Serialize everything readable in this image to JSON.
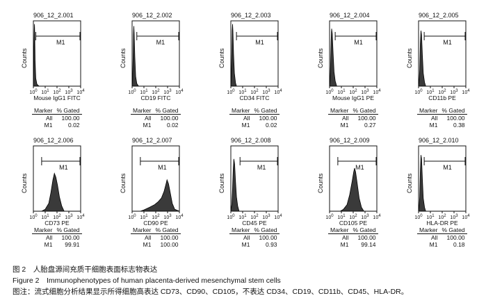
{
  "figure": {
    "caption_cn": "图 2　人胎盘源间充质干细胞表面标志物表达",
    "caption_en": "Figure 2　Immunophenotypes of human placenta-derived mesenchymal stem cells",
    "note": "图注：流式细胞分析结果显示所得细胞高表达 CD73、CD90、CD105，不表达 CD34、CD19、CD11b、CD45、HLA-DR。"
  },
  "chart_data": [
    {
      "type": "area",
      "title": "906_12_2.001",
      "xlabel": "Mouse IgG1 FITC",
      "ylabel": "Counts",
      "x_scale": "log",
      "xlim": [
        1,
        10000
      ],
      "x_ticks": [
        "10^0",
        "10^1",
        "10^2",
        "10^3",
        "10^4"
      ],
      "gate": {
        "name": "M1",
        "range": [
          1.6,
          10000
        ]
      },
      "peak_x": 1.25,
      "series": [
        {
          "x": [
            1,
            1.05,
            1.1,
            1.15,
            1.2,
            1.25,
            1.3,
            1.4,
            1.6,
            2,
            3,
            10000
          ],
          "y": [
            0,
            20,
            45,
            70,
            88,
            95,
            80,
            40,
            12,
            3,
            0,
            0
          ]
        }
      ],
      "stats": {
        "headers": [
          "Marker",
          "% Gated"
        ],
        "rows": [
          [
            "All",
            "100.00"
          ],
          [
            "M1",
            "0.02"
          ]
        ]
      }
    },
    {
      "type": "area",
      "title": "906_12_2.002",
      "xlabel": "CD19 FITC",
      "ylabel": "Counts",
      "x_scale": "log",
      "xlim": [
        1,
        10000
      ],
      "x_ticks": [
        "10^0",
        "10^1",
        "10^2",
        "10^3",
        "10^4"
      ],
      "gate": {
        "name": "M1",
        "range": [
          2.5,
          10000
        ]
      },
      "peak_x": 1.4,
      "series": [
        {
          "x": [
            1,
            1.1,
            1.2,
            1.3,
            1.4,
            1.5,
            1.7,
            2,
            2.5,
            3.5,
            10000
          ],
          "y": [
            0,
            10,
            40,
            78,
            92,
            80,
            45,
            15,
            4,
            0,
            0
          ]
        }
      ],
      "stats": {
        "headers": [
          "Marker",
          "% Gated"
        ],
        "rows": [
          [
            "All",
            "100.00"
          ],
          [
            "M1",
            "0.02"
          ]
        ]
      }
    },
    {
      "type": "area",
      "title": "906_12_2.003",
      "xlabel": "CD34 FITC",
      "ylabel": "Counts",
      "x_scale": "log",
      "xlim": [
        1,
        10000
      ],
      "x_ticks": [
        "10^0",
        "10^1",
        "10^2",
        "10^3",
        "10^4"
      ],
      "gate": {
        "name": "M1",
        "range": [
          3,
          10000
        ]
      },
      "peak_x": 1.35,
      "series": [
        {
          "x": [
            1,
            1.1,
            1.2,
            1.3,
            1.4,
            1.5,
            1.7,
            2,
            2.5,
            3,
            10000
          ],
          "y": [
            0,
            15,
            50,
            85,
            95,
            85,
            50,
            20,
            5,
            0,
            0
          ]
        }
      ],
      "stats": {
        "headers": [
          "Marker",
          "% Gated"
        ],
        "rows": [
          [
            "All",
            "100.00"
          ],
          [
            "M1",
            "0.02"
          ]
        ]
      }
    },
    {
      "type": "area",
      "title": "906_12_2.004",
      "xlabel": "Mouse IgG1 PE",
      "ylabel": "Counts",
      "x_scale": "log",
      "xlim": [
        1,
        10000
      ],
      "x_ticks": [
        "10^0",
        "10^1",
        "10^2",
        "10^3",
        "10^4"
      ],
      "gate": {
        "name": "M1",
        "range": [
          3,
          10000
        ]
      },
      "peak_x": 1.5,
      "series": [
        {
          "x": [
            1,
            1.1,
            1.2,
            1.35,
            1.5,
            1.7,
            2,
            2.4,
            3,
            4,
            10000
          ],
          "y": [
            0,
            8,
            30,
            70,
            88,
            80,
            50,
            22,
            8,
            0,
            0
          ]
        }
      ],
      "stats": {
        "headers": [
          "Marker",
          "% Gated"
        ],
        "rows": [
          [
            "All",
            "100.00"
          ],
          [
            "M1",
            "0.27"
          ]
        ]
      }
    },
    {
      "type": "area",
      "title": "906_12_2.005",
      "xlabel": "CD11b PE",
      "ylabel": "Counts",
      "x_scale": "log",
      "xlim": [
        1,
        10000
      ],
      "x_ticks": [
        "10^0",
        "10^1",
        "10^2",
        "10^3",
        "10^4"
      ],
      "gate": {
        "name": "M1",
        "range": [
          3,
          10000
        ]
      },
      "peak_x": 1.6,
      "series": [
        {
          "x": [
            1,
            1.1,
            1.25,
            1.4,
            1.6,
            1.8,
            2.1,
            2.5,
            3.2,
            4,
            10000
          ],
          "y": [
            0,
            6,
            25,
            65,
            85,
            78,
            48,
            20,
            6,
            0,
            0
          ]
        }
      ],
      "stats": {
        "headers": [
          "Marker",
          "% Gated"
        ],
        "rows": [
          [
            "All",
            "100.00"
          ],
          [
            "M1",
            "0.38"
          ]
        ]
      }
    },
    {
      "type": "area",
      "title": "906_12_2.006",
      "xlabel": "CD73 PE",
      "ylabel": "Counts",
      "x_scale": "log",
      "xlim": [
        1,
        10000
      ],
      "x_ticks": [
        "10^0",
        "10^1",
        "10^2",
        "10^3",
        "10^4"
      ],
      "gate": {
        "name": "M1",
        "range": [
          5,
          10000
        ]
      },
      "peak_x": 60,
      "series": [
        {
          "x": [
            1,
            5,
            10,
            20,
            30,
            45,
            60,
            80,
            110,
            160,
            250,
            400,
            10000
          ],
          "y": [
            0,
            0,
            3,
            12,
            28,
            48,
            58,
            52,
            40,
            22,
            8,
            0,
            0
          ]
        }
      ],
      "stats": {
        "headers": [
          "Marker",
          "% Gated"
        ],
        "rows": [
          [
            "All",
            "100.00"
          ],
          [
            "M1",
            "99.91"
          ]
        ]
      }
    },
    {
      "type": "area",
      "title": "906_12_2.007",
      "xlabel": "CD90 PE",
      "ylabel": "Counts",
      "x_scale": "log",
      "xlim": [
        1,
        10000
      ],
      "x_ticks": [
        "10^0",
        "10^1",
        "10^2",
        "10^3",
        "10^4"
      ],
      "gate": {
        "name": "M1",
        "range": [
          5,
          10000
        ]
      },
      "peak_x": 900,
      "series": [
        {
          "x": [
            1,
            5,
            10,
            30,
            80,
            150,
            300,
            500,
            700,
            900,
            1200,
            1700,
            2500,
            4000,
            10000
          ],
          "y": [
            0,
            0,
            2,
            6,
            10,
            14,
            20,
            30,
            40,
            48,
            42,
            28,
            12,
            3,
            0
          ]
        }
      ],
      "stats": {
        "headers": [
          "Marker",
          "% Gated"
        ],
        "rows": [
          [
            "All",
            "100.00"
          ],
          [
            "M1",
            "100.00"
          ]
        ]
      }
    },
    {
      "type": "area",
      "title": "906_12_2.008",
      "xlabel": "CD45 PE",
      "ylabel": "Counts",
      "x_scale": "log",
      "xlim": [
        1,
        10000
      ],
      "x_ticks": [
        "10^0",
        "10^1",
        "10^2",
        "10^3",
        "10^4"
      ],
      "gate": {
        "name": "M1",
        "range": [
          6,
          10000
        ]
      },
      "peak_x": 1.8,
      "series": [
        {
          "x": [
            1,
            1.2,
            1.4,
            1.6,
            1.8,
            2.1,
            2.5,
            3,
            3.8,
            5,
            10000
          ],
          "y": [
            0,
            10,
            35,
            65,
            80,
            72,
            45,
            22,
            8,
            0,
            0
          ]
        }
      ],
      "stats": {
        "headers": [
          "Marker",
          "% Gated"
        ],
        "rows": [
          [
            "All",
            "100.00"
          ],
          [
            "M1",
            "0.93"
          ]
        ]
      }
    },
    {
      "type": "area",
      "title": "906_12_2.009",
      "xlabel": "CD105 PE",
      "ylabel": "Counts",
      "x_scale": "log",
      "xlim": [
        1,
        10000
      ],
      "x_ticks": [
        "10^0",
        "10^1",
        "10^2",
        "10^3",
        "10^4"
      ],
      "gate": {
        "name": "M1",
        "range": [
          5,
          10000
        ]
      },
      "peak_x": 130,
      "series": [
        {
          "x": [
            1,
            8,
            15,
            30,
            50,
            80,
            110,
            130,
            160,
            220,
            320,
            500,
            800,
            10000
          ],
          "y": [
            0,
            0,
            3,
            10,
            25,
            45,
            60,
            66,
            60,
            42,
            20,
            6,
            0,
            0
          ]
        }
      ],
      "stats": {
        "headers": [
          "Marker",
          "% Gated"
        ],
        "rows": [
          [
            "All",
            "100.00"
          ],
          [
            "M1",
            "99.14"
          ]
        ]
      }
    },
    {
      "type": "area",
      "title": "906_12_2.010",
      "xlabel": "HLA-DR PE",
      "ylabel": "Counts",
      "x_scale": "log",
      "xlim": [
        1,
        10000
      ],
      "x_ticks": [
        "10^0",
        "10^1",
        "10^2",
        "10^3",
        "10^4"
      ],
      "gate": {
        "name": "M1",
        "range": [
          3,
          10000
        ]
      },
      "peak_x": 1.6,
      "series": [
        {
          "x": [
            1,
            1.1,
            1.25,
            1.4,
            1.6,
            1.8,
            2.1,
            2.5,
            3.2,
            4,
            10000
          ],
          "y": [
            0,
            5,
            22,
            60,
            86,
            80,
            50,
            20,
            6,
            0,
            0
          ]
        }
      ],
      "stats": {
        "headers": [
          "Marker",
          "% Gated"
        ],
        "rows": [
          [
            "All",
            "100.00"
          ],
          [
            "M1",
            "0.18"
          ]
        ]
      }
    }
  ]
}
